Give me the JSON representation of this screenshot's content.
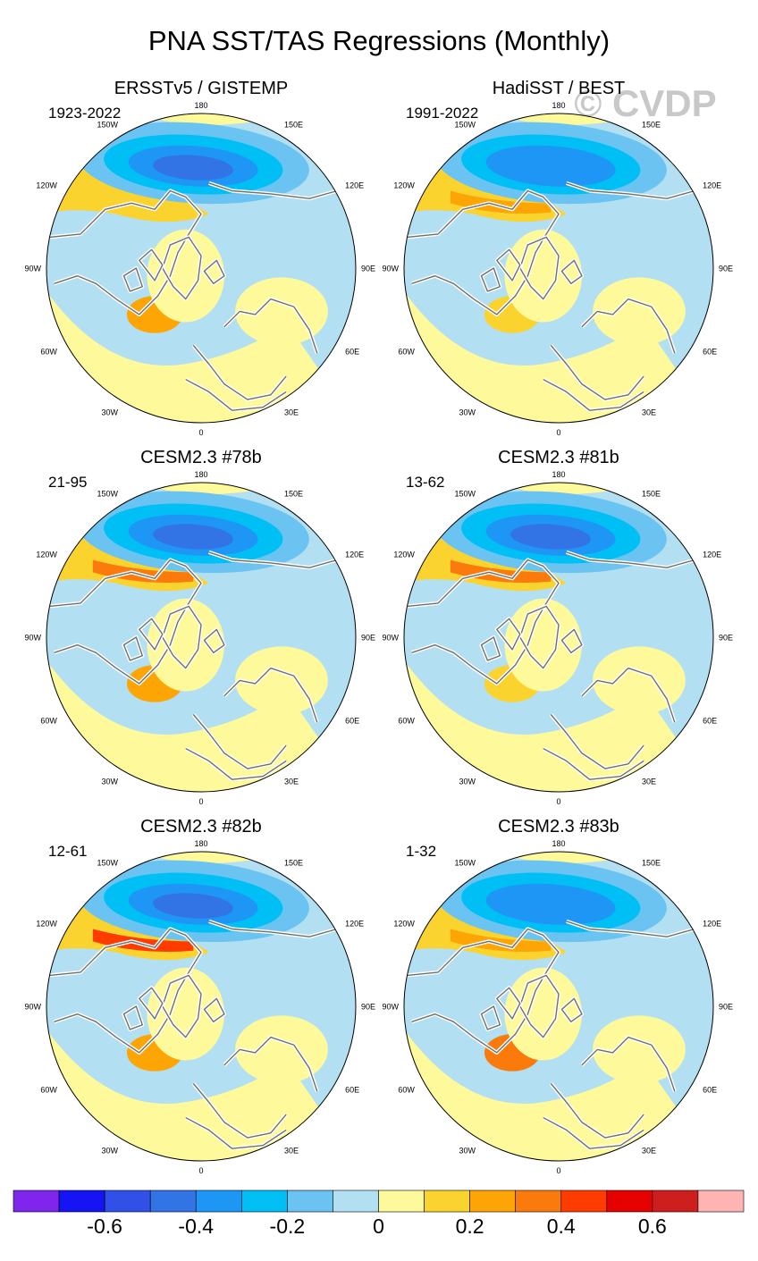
{
  "title": "PNA SST/TAS Regressions (Monthly)",
  "watermark": "© CVDP",
  "lon_labels": [
    "180",
    "150E",
    "120E",
    "90E",
    "60E",
    "30E",
    "0",
    "30W",
    "60W",
    "90W",
    "120W",
    "150W"
  ],
  "colors": {
    "land_border": "#6e6e6e",
    "coast_white": "#ffffff",
    "watermark": "#c8c8c8"
  },
  "chart_data": {
    "type": "heatmap",
    "description_scale": "colorbar",
    "colorbar": {
      "ticks": [
        "-0.6",
        "-0.4",
        "-0.2",
        "0",
        "0.2",
        "0.4",
        "0.6"
      ],
      "tick_values": [
        -0.6,
        -0.4,
        -0.2,
        0,
        0.2,
        0.4,
        0.6
      ],
      "levels": [
        -0.7,
        -0.6,
        -0.5,
        -0.4,
        -0.3,
        -0.2,
        -0.1,
        0,
        0.1,
        0.2,
        0.3,
        0.4,
        0.5,
        0.6,
        0.7
      ],
      "colors": [
        "#8025ed",
        "#1414f5",
        "#3050e8",
        "#3273e5",
        "#1e96f5",
        "#00bff5",
        "#6ac3f1",
        "#b3dff2",
        "#fefa9c",
        "#fbd32f",
        "#fca505",
        "#fb7a0c",
        "#fe3c00",
        "#e60000",
        "#cf1e1e",
        "#ffb4b4"
      ]
    },
    "panels": [
      {
        "title": "ERSSTv5 / GISTEMP",
        "period": "1923-2022",
        "pacific_low": -0.5,
        "na_high": 0.3,
        "bering_warm": 0.2
      },
      {
        "title": "HadiSST / BEST",
        "period": "1991-2022",
        "pacific_low": -0.4,
        "na_high": 0.2,
        "bering_warm": 0.3
      },
      {
        "title": "CESM2.3 #78b",
        "period": "21-95",
        "pacific_low": -0.5,
        "na_high": 0.3,
        "bering_warm": 0.4
      },
      {
        "title": "CESM2.3 #81b",
        "period": "13-62",
        "pacific_low": -0.5,
        "na_high": 0.2,
        "bering_warm": 0.4
      },
      {
        "title": "CESM2.3 #82b",
        "period": "12-61",
        "pacific_low": -0.5,
        "na_high": 0.3,
        "bering_warm": 0.5
      },
      {
        "title": "CESM2.3 #83b",
        "period": "1-32",
        "pacific_low": -0.4,
        "na_high": 0.4,
        "bering_warm": 0.3
      }
    ]
  }
}
